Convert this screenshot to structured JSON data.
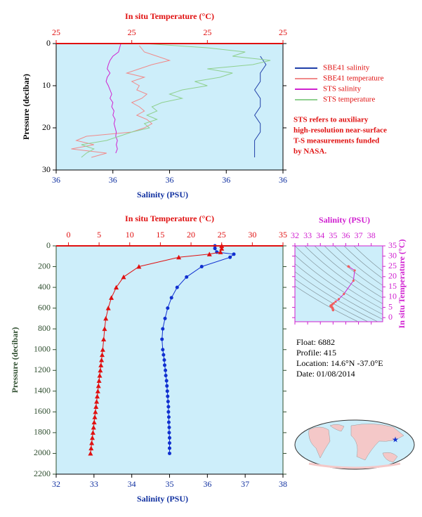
{
  "chart_data": [
    {
      "type": "profile",
      "x_label": "Salinity (PSU)",
      "x2_label": "In situ Temperature (°C)",
      "y_label": "Pressure (decibar)",
      "xlim": [
        35.9,
        36.3
      ],
      "xticks": [
        {
          "value": 35.9,
          "label": "36"
        },
        {
          "value": 36.0,
          "label": "36"
        },
        {
          "value": 36.1,
          "label": "36"
        },
        {
          "value": 36.2,
          "label": "36"
        },
        {
          "value": 36.3,
          "label": "36"
        }
      ],
      "x2lim": [
        24.6,
        25.5
      ],
      "x2ticks": [
        {
          "value": 24.6,
          "label": "25"
        },
        {
          "value": 24.9,
          "label": "25"
        },
        {
          "value": 25.2,
          "label": "25"
        },
        {
          "value": 25.5,
          "label": "25"
        }
      ],
      "ylim": [
        0,
        30
      ],
      "yticks": [
        0,
        10,
        20,
        30
      ],
      "y_inverted": true,
      "legend": "right",
      "note": [
        "STS refers to auxiliary",
        "high-resolution near-surface",
        "T-S measurements funded",
        "by NASA."
      ],
      "series": [
        {
          "name": "SBE41 salinity",
          "color": "#1f3fa8",
          "axis": "x",
          "pressure": [
            3,
            5,
            7,
            9,
            11,
            13,
            15,
            17,
            19,
            21,
            23,
            25,
            27
          ],
          "values": [
            36.26,
            36.27,
            36.26,
            36.26,
            36.25,
            36.26,
            36.26,
            36.25,
            36.26,
            36.26,
            36.25,
            36.25,
            36.25
          ]
        },
        {
          "name": "SBE41 temperature",
          "color": "#f08a8a",
          "axis": "x2",
          "pressure": [
            0.5,
            2,
            3,
            4,
            5,
            6,
            7,
            8,
            9,
            10,
            11,
            12,
            13,
            14,
            15,
            16,
            17,
            18,
            19,
            20,
            21,
            22,
            23,
            24,
            25,
            26,
            27
          ],
          "values": [
            24.93,
            24.95,
            25.0,
            25.05,
            24.98,
            24.93,
            24.88,
            24.95,
            24.9,
            24.93,
            24.92,
            24.96,
            24.94,
            24.9,
            24.93,
            24.95,
            24.92,
            24.96,
            24.98,
            24.95,
            24.9,
            24.72,
            24.68,
            24.75,
            24.66,
            24.8,
            24.74
          ]
        },
        {
          "name": "STS salinity",
          "color": "#d020d0",
          "axis": "x",
          "pressure": [
            0,
            1,
            2,
            3,
            4,
            5,
            6,
            7,
            8,
            9,
            10,
            11,
            12,
            13,
            14,
            15,
            16,
            17,
            18,
            19,
            20,
            21,
            22,
            23,
            24,
            25,
            26
          ],
          "values": [
            36.014,
            36.012,
            36.01,
            36.0,
            35.995,
            35.992,
            35.99,
            35.995,
            35.99,
            35.988,
            35.992,
            35.995,
            35.998,
            35.995,
            36.0,
            35.998,
            36.002,
            36.0,
            36.004,
            36.002,
            36.004,
            36.006,
            36.005,
            36.008,
            36.006,
            36.008,
            36.005
          ]
        },
        {
          "name": "STS temperature",
          "color": "#8fd08f",
          "axis": "x2",
          "pressure": [
            0,
            1,
            2,
            3,
            4,
            5,
            6,
            7,
            8,
            9,
            10,
            11,
            12,
            13,
            14,
            15,
            16,
            17,
            18,
            19,
            20,
            21,
            22,
            23,
            24,
            25,
            26,
            27
          ],
          "values": [
            24.95,
            25.2,
            25.35,
            25.3,
            25.45,
            25.38,
            25.2,
            25.3,
            25.25,
            25.15,
            25.2,
            25.1,
            25.05,
            25.1,
            25.02,
            24.98,
            25.0,
            24.96,
            25.0,
            24.95,
            24.97,
            24.9,
            24.85,
            24.8,
            24.7,
            24.75,
            24.72,
            24.7
          ]
        }
      ]
    },
    {
      "type": "profile",
      "x_label": "Salinity (PSU)",
      "x2_label": "In situ Temperature (°C)",
      "y_label": "Pressure (decibar)",
      "xlim": [
        32,
        38
      ],
      "xticks": [
        32,
        33,
        34,
        35,
        36,
        37,
        38
      ],
      "x2lim": [
        -2,
        35
      ],
      "x2ticks": [
        0,
        5,
        10,
        15,
        20,
        25,
        30,
        35
      ],
      "ylim": [
        0,
        2200
      ],
      "yticks": [
        0,
        200,
        400,
        600,
        800,
        1000,
        1200,
        1400,
        1600,
        1800,
        2000,
        2200
      ],
      "y_inverted": true,
      "series": [
        {
          "name": "salinity",
          "color": "#1030d0",
          "axis": "x",
          "marker": "circle",
          "pressure": [
            0,
            25,
            60,
            80,
            110,
            200,
            300,
            400,
            500,
            600,
            700,
            800,
            900,
            1000,
            1050,
            1100,
            1150,
            1200,
            1250,
            1300,
            1350,
            1400,
            1450,
            1500,
            1550,
            1600,
            1650,
            1700,
            1750,
            1800,
            1850,
            1900,
            1950,
            2000
          ],
          "values": [
            36.2,
            36.2,
            36.25,
            36.7,
            36.6,
            35.85,
            35.45,
            35.2,
            35.05,
            34.95,
            34.88,
            34.82,
            34.8,
            34.82,
            34.84,
            34.86,
            34.87,
            34.89,
            34.9,
            34.92,
            34.93,
            34.94,
            34.95,
            34.96,
            34.97,
            34.97,
            34.98,
            34.98,
            34.99,
            34.99,
            35.0,
            35.0,
            35.0,
            35.0
          ]
        },
        {
          "name": "temperature",
          "color": "#e01010",
          "axis": "x2",
          "marker": "triangle",
          "pressure": [
            0,
            25,
            60,
            80,
            110,
            200,
            300,
            400,
            500,
            600,
            700,
            800,
            900,
            1000,
            1050,
            1100,
            1150,
            1200,
            1250,
            1300,
            1350,
            1400,
            1450,
            1500,
            1550,
            1600,
            1650,
            1700,
            1750,
            1800,
            1850,
            1900,
            1950,
            2000
          ],
          "values": [
            25.0,
            25.0,
            24.8,
            23.0,
            18.0,
            11.5,
            9.0,
            7.8,
            7.0,
            6.5,
            6.1,
            5.9,
            5.75,
            5.6,
            5.5,
            5.4,
            5.3,
            5.2,
            5.1,
            5.0,
            4.9,
            4.8,
            4.7,
            4.6,
            4.5,
            4.4,
            4.3,
            4.2,
            4.1,
            4.0,
            3.9,
            3.8,
            3.7,
            3.6
          ]
        }
      ]
    },
    {
      "type": "ts",
      "x_label": "Salinity (PSU)",
      "y_label": "In situ Temperature (°C)",
      "xlim": [
        32,
        38.9
      ],
      "xticks": [
        32,
        33,
        34,
        35,
        36,
        37,
        38
      ],
      "ylim": [
        -2,
        35
      ],
      "yticks": [
        0,
        5,
        10,
        15,
        20,
        25,
        30,
        35
      ],
      "color": "#d020d0",
      "point_color": "#f06060"
    }
  ],
  "info": [
    "Float:  6882",
    "Profile:  415",
    "Location:  14.6°N  -37.0°E",
    "Date:  01/08/2014"
  ]
}
